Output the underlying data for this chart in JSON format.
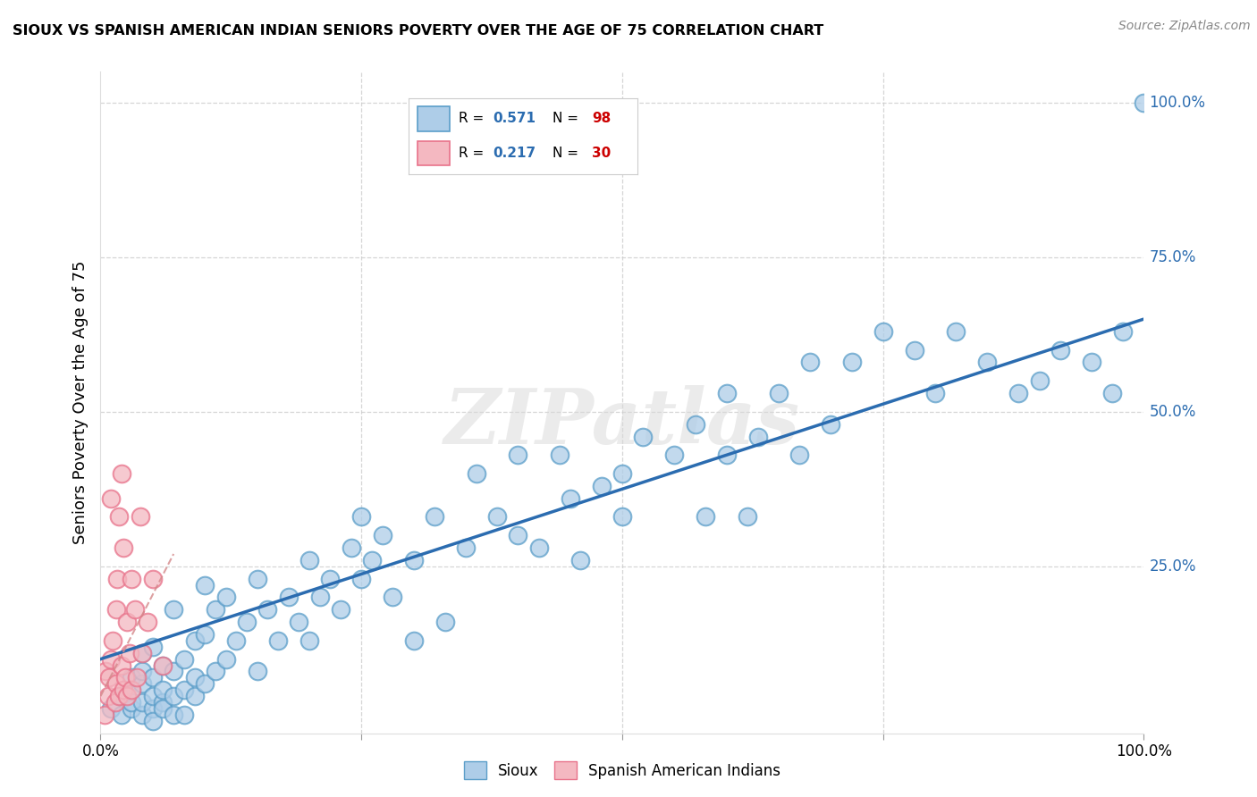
{
  "title": "SIOUX VS SPANISH AMERICAN INDIAN SENIORS POVERTY OVER THE AGE OF 75 CORRELATION CHART",
  "source": "Source: ZipAtlas.com",
  "ylabel": "Seniors Poverty Over the Age of 75",
  "xlim": [
    0,
    1.0
  ],
  "ylim": [
    -0.02,
    1.05
  ],
  "ytick_positions": [
    0.0,
    0.25,
    0.5,
    0.75,
    1.0
  ],
  "ytick_labels_right": [
    "",
    "25.0%",
    "50.0%",
    "75.0%",
    "100.0%"
  ],
  "sioux_R": 0.571,
  "sioux_N": 98,
  "spanish_R": 0.217,
  "spanish_N": 30,
  "sioux_color": "#aecde8",
  "sioux_edge_color": "#5b9ec9",
  "spanish_color": "#f4b8c1",
  "spanish_edge_color": "#e8728a",
  "sioux_line_color": "#2b6cb0",
  "spanish_line_color": "#c0392b",
  "background_color": "#ffffff",
  "grid_color": "#cccccc",
  "watermark": "ZIPatlas",
  "sioux_x": [
    0.01,
    0.02,
    0.02,
    0.03,
    0.03,
    0.03,
    0.03,
    0.04,
    0.04,
    0.04,
    0.04,
    0.04,
    0.05,
    0.05,
    0.05,
    0.05,
    0.05,
    0.06,
    0.06,
    0.06,
    0.06,
    0.07,
    0.07,
    0.07,
    0.07,
    0.08,
    0.08,
    0.08,
    0.09,
    0.09,
    0.09,
    0.1,
    0.1,
    0.1,
    0.11,
    0.11,
    0.12,
    0.12,
    0.13,
    0.14,
    0.15,
    0.15,
    0.16,
    0.17,
    0.18,
    0.19,
    0.2,
    0.2,
    0.21,
    0.22,
    0.23,
    0.24,
    0.25,
    0.25,
    0.26,
    0.27,
    0.28,
    0.3,
    0.3,
    0.32,
    0.33,
    0.35,
    0.36,
    0.38,
    0.4,
    0.4,
    0.42,
    0.44,
    0.45,
    0.46,
    0.48,
    0.5,
    0.5,
    0.52,
    0.55,
    0.57,
    0.58,
    0.6,
    0.6,
    0.62,
    0.63,
    0.65,
    0.67,
    0.68,
    0.7,
    0.72,
    0.75,
    0.78,
    0.8,
    0.82,
    0.85,
    0.88,
    0.9,
    0.92,
    0.95,
    0.97,
    0.98,
    1.0
  ],
  "sioux_y": [
    0.02,
    0.01,
    0.04,
    0.02,
    0.05,
    0.07,
    0.03,
    0.01,
    0.03,
    0.06,
    0.08,
    0.11,
    0.02,
    0.04,
    0.07,
    0.12,
    0.0,
    0.03,
    0.05,
    0.09,
    0.02,
    0.04,
    0.08,
    0.18,
    0.01,
    0.05,
    0.1,
    0.01,
    0.07,
    0.13,
    0.04,
    0.06,
    0.14,
    0.22,
    0.08,
    0.18,
    0.1,
    0.2,
    0.13,
    0.16,
    0.08,
    0.23,
    0.18,
    0.13,
    0.2,
    0.16,
    0.13,
    0.26,
    0.2,
    0.23,
    0.18,
    0.28,
    0.23,
    0.33,
    0.26,
    0.3,
    0.2,
    0.13,
    0.26,
    0.33,
    0.16,
    0.28,
    0.4,
    0.33,
    0.3,
    0.43,
    0.28,
    0.43,
    0.36,
    0.26,
    0.38,
    0.4,
    0.33,
    0.46,
    0.43,
    0.48,
    0.33,
    0.43,
    0.53,
    0.33,
    0.46,
    0.53,
    0.43,
    0.58,
    0.48,
    0.58,
    0.63,
    0.6,
    0.53,
    0.63,
    0.58,
    0.53,
    0.55,
    0.6,
    0.58,
    0.53,
    0.63,
    1.0
  ],
  "spanish_x": [
    0.004,
    0.005,
    0.007,
    0.008,
    0.01,
    0.01,
    0.012,
    0.014,
    0.015,
    0.015,
    0.016,
    0.018,
    0.018,
    0.02,
    0.02,
    0.022,
    0.022,
    0.024,
    0.025,
    0.025,
    0.028,
    0.03,
    0.03,
    0.033,
    0.035,
    0.038,
    0.04,
    0.045,
    0.05,
    0.06
  ],
  "spanish_y": [
    0.01,
    0.08,
    0.04,
    0.07,
    0.1,
    0.36,
    0.13,
    0.03,
    0.18,
    0.06,
    0.23,
    0.04,
    0.33,
    0.09,
    0.4,
    0.05,
    0.28,
    0.07,
    0.16,
    0.04,
    0.11,
    0.05,
    0.23,
    0.18,
    0.07,
    0.33,
    0.11,
    0.16,
    0.23,
    0.09
  ],
  "sioux_line_x_start": 0.0,
  "sioux_line_y_start": 0.1,
  "sioux_line_x_end": 1.0,
  "sioux_line_y_end": 0.65,
  "spanish_line_x_start": 0.0,
  "spanish_line_y_start": 0.04,
  "spanish_line_x_end": 0.07,
  "spanish_line_y_end": 0.27
}
